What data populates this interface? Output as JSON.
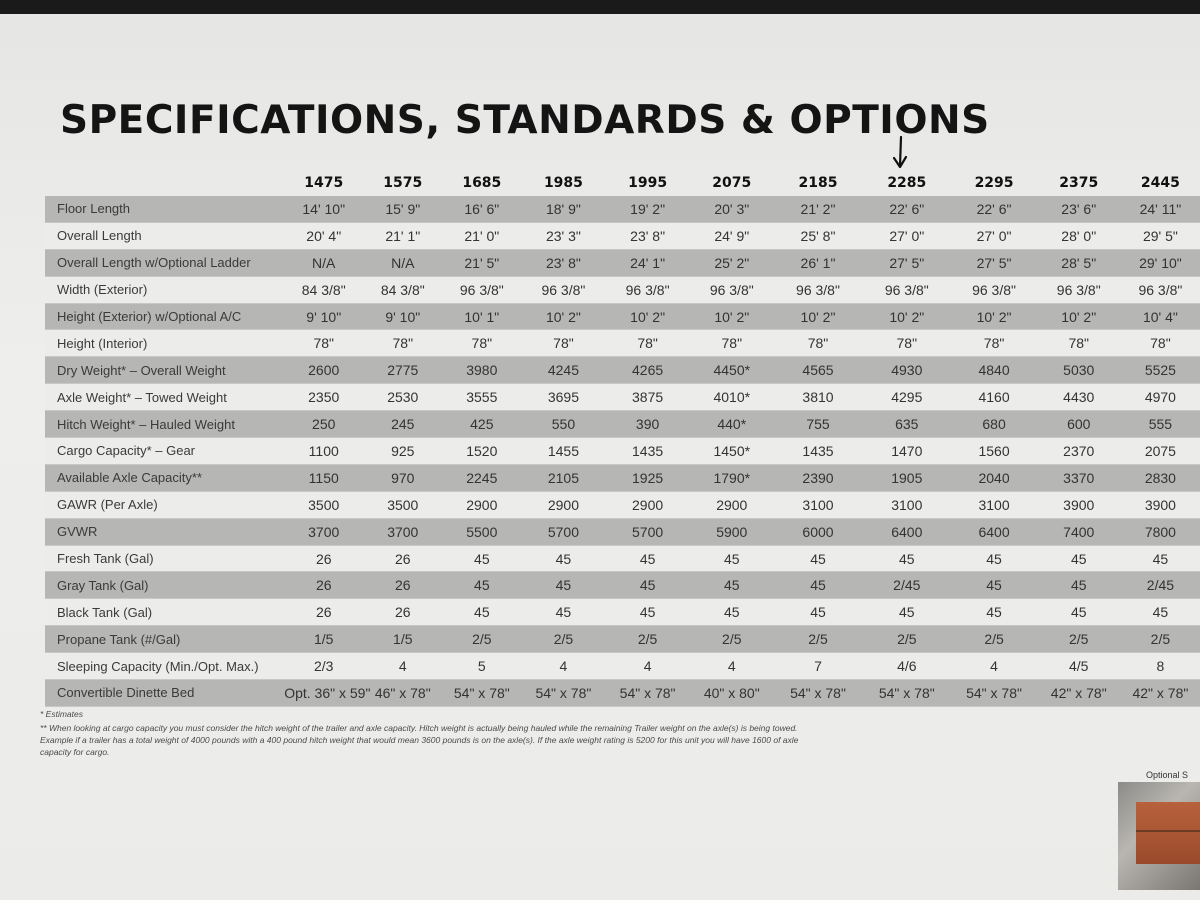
{
  "title": "SPECIFICATIONS, STANDARDS & OPTIONS",
  "models": [
    "1475",
    "1575",
    "1685",
    "1985",
    "1995",
    "2075",
    "2185",
    "2285",
    "2295",
    "2375",
    "2445"
  ],
  "rows": [
    {
      "label": "Floor Length",
      "values": [
        "14' 10\"",
        "15' 9\"",
        "16' 6\"",
        "18' 9\"",
        "19' 2\"",
        "20' 3\"",
        "21' 2\"",
        "22' 6\"",
        "22' 6\"",
        "23' 6\"",
        "24' 11\""
      ]
    },
    {
      "label": "Overall Length",
      "values": [
        "20' 4\"",
        "21' 1\"",
        "21' 0\"",
        "23' 3\"",
        "23' 8\"",
        "24' 9\"",
        "25' 8\"",
        "27' 0\"",
        "27' 0\"",
        "28' 0\"",
        "29' 5\""
      ]
    },
    {
      "label": "Overall Length w/Optional Ladder",
      "values": [
        "N/A",
        "N/A",
        "21' 5\"",
        "23' 8\"",
        "24' 1\"",
        "25' 2\"",
        "26' 1\"",
        "27' 5\"",
        "27' 5\"",
        "28' 5\"",
        "29' 10\""
      ]
    },
    {
      "label": "Width (Exterior)",
      "values": [
        "84 3/8\"",
        "84 3/8\"",
        "96 3/8\"",
        "96 3/8\"",
        "96 3/8\"",
        "96 3/8\"",
        "96 3/8\"",
        "96 3/8\"",
        "96 3/8\"",
        "96 3/8\"",
        "96 3/8\""
      ]
    },
    {
      "label": "Height (Exterior) w/Optional A/C",
      "values": [
        "9' 10\"",
        "9' 10\"",
        "10' 1\"",
        "10' 2\"",
        "10' 2\"",
        "10' 2\"",
        "10' 2\"",
        "10' 2\"",
        "10' 2\"",
        "10' 2\"",
        "10' 4\""
      ]
    },
    {
      "label": "Height (Interior)",
      "values": [
        "78\"",
        "78\"",
        "78\"",
        "78\"",
        "78\"",
        "78\"",
        "78\"",
        "78\"",
        "78\"",
        "78\"",
        "78\""
      ]
    },
    {
      "label": "Dry Weight* – Overall Weight",
      "values": [
        "2600",
        "2775",
        "3980",
        "4245",
        "4265",
        "4450*",
        "4565",
        "4930",
        "4840",
        "5030",
        "5525"
      ]
    },
    {
      "label": "Axle Weight* – Towed Weight",
      "values": [
        "2350",
        "2530",
        "3555",
        "3695",
        "3875",
        "4010*",
        "3810",
        "4295",
        "4160",
        "4430",
        "4970"
      ]
    },
    {
      "label": "Hitch Weight* – Hauled Weight",
      "values": [
        "250",
        "245",
        "425",
        "550",
        "390",
        "440*",
        "755",
        "635",
        "680",
        "600",
        "555"
      ]
    },
    {
      "label": "Cargo Capacity* – Gear",
      "values": [
        "1100",
        "925",
        "1520",
        "1455",
        "1435",
        "1450*",
        "1435",
        "1470",
        "1560",
        "2370",
        "2075"
      ]
    },
    {
      "label": "Available Axle Capacity**",
      "values": [
        "1150",
        "970",
        "2245",
        "2105",
        "1925",
        "1790*",
        "2390",
        "1905",
        "2040",
        "3370",
        "2830"
      ]
    },
    {
      "label": "GAWR (Per Axle)",
      "values": [
        "3500",
        "3500",
        "2900",
        "2900",
        "2900",
        "2900",
        "3100",
        "3100",
        "3100",
        "3900",
        "3900"
      ]
    },
    {
      "label": "GVWR",
      "values": [
        "3700",
        "3700",
        "5500",
        "5700",
        "5700",
        "5900",
        "6000",
        "6400",
        "6400",
        "7400",
        "7800"
      ]
    },
    {
      "label": "Fresh Tank (Gal)",
      "values": [
        "26",
        "26",
        "45",
        "45",
        "45",
        "45",
        "45",
        "45",
        "45",
        "45",
        "45"
      ]
    },
    {
      "label": "Gray Tank (Gal)",
      "values": [
        "26",
        "26",
        "45",
        "45",
        "45",
        "45",
        "45",
        "2/45",
        "45",
        "45",
        "2/45"
      ]
    },
    {
      "label": "Black Tank (Gal)",
      "values": [
        "26",
        "26",
        "45",
        "45",
        "45",
        "45",
        "45",
        "45",
        "45",
        "45",
        "45"
      ]
    },
    {
      "label": "Propane Tank (#/Gal)",
      "values": [
        "1/5",
        "1/5",
        "2/5",
        "2/5",
        "2/5",
        "2/5",
        "2/5",
        "2/5",
        "2/5",
        "2/5",
        "2/5"
      ]
    },
    {
      "label": "Sleeping Capacity (Min./Opt. Max.)",
      "values": [
        "2/3",
        "4",
        "5",
        "4",
        "4",
        "4",
        "7",
        "4/6",
        "4",
        "4/5",
        "8"
      ]
    },
    {
      "label": "Convertible Dinette Bed",
      "values": [
        "Opt. 36\" x 59\"",
        "46\" x 78\"",
        "54\" x 78\"",
        "54\" x 78\"",
        "54\" x 78\"",
        "40\" x 80\"",
        "54\" x 78\"",
        "54\" x 78\"",
        "54\" x 78\"",
        "42\" x 78\"",
        "42\" x 78\""
      ]
    }
  ],
  "footnotes": [
    "* Estimates",
    "** When looking at cargo capacity you must consider the hitch weight of the trailer and axle capacity. Hitch weight is actually being hauled while the remaining Trailer weight on the axle(s) is being towed. Example if a trailer has a total weight of 4000 pounds with a 400 pound hitch weight that would mean 3600 pounds is on the axle(s). If the axle weight rating is 5200 for this unit you will have 1600 of axle capacity for cargo."
  ],
  "optional_label": "Optional S",
  "colors": {
    "stripe_dark": "#b6b6b4",
    "stripe_light": "#ececea",
    "paper": "#eeeeec",
    "title": "#141414"
  },
  "icons": {
    "model_marker": "hand-drawn-arrow-icon"
  }
}
